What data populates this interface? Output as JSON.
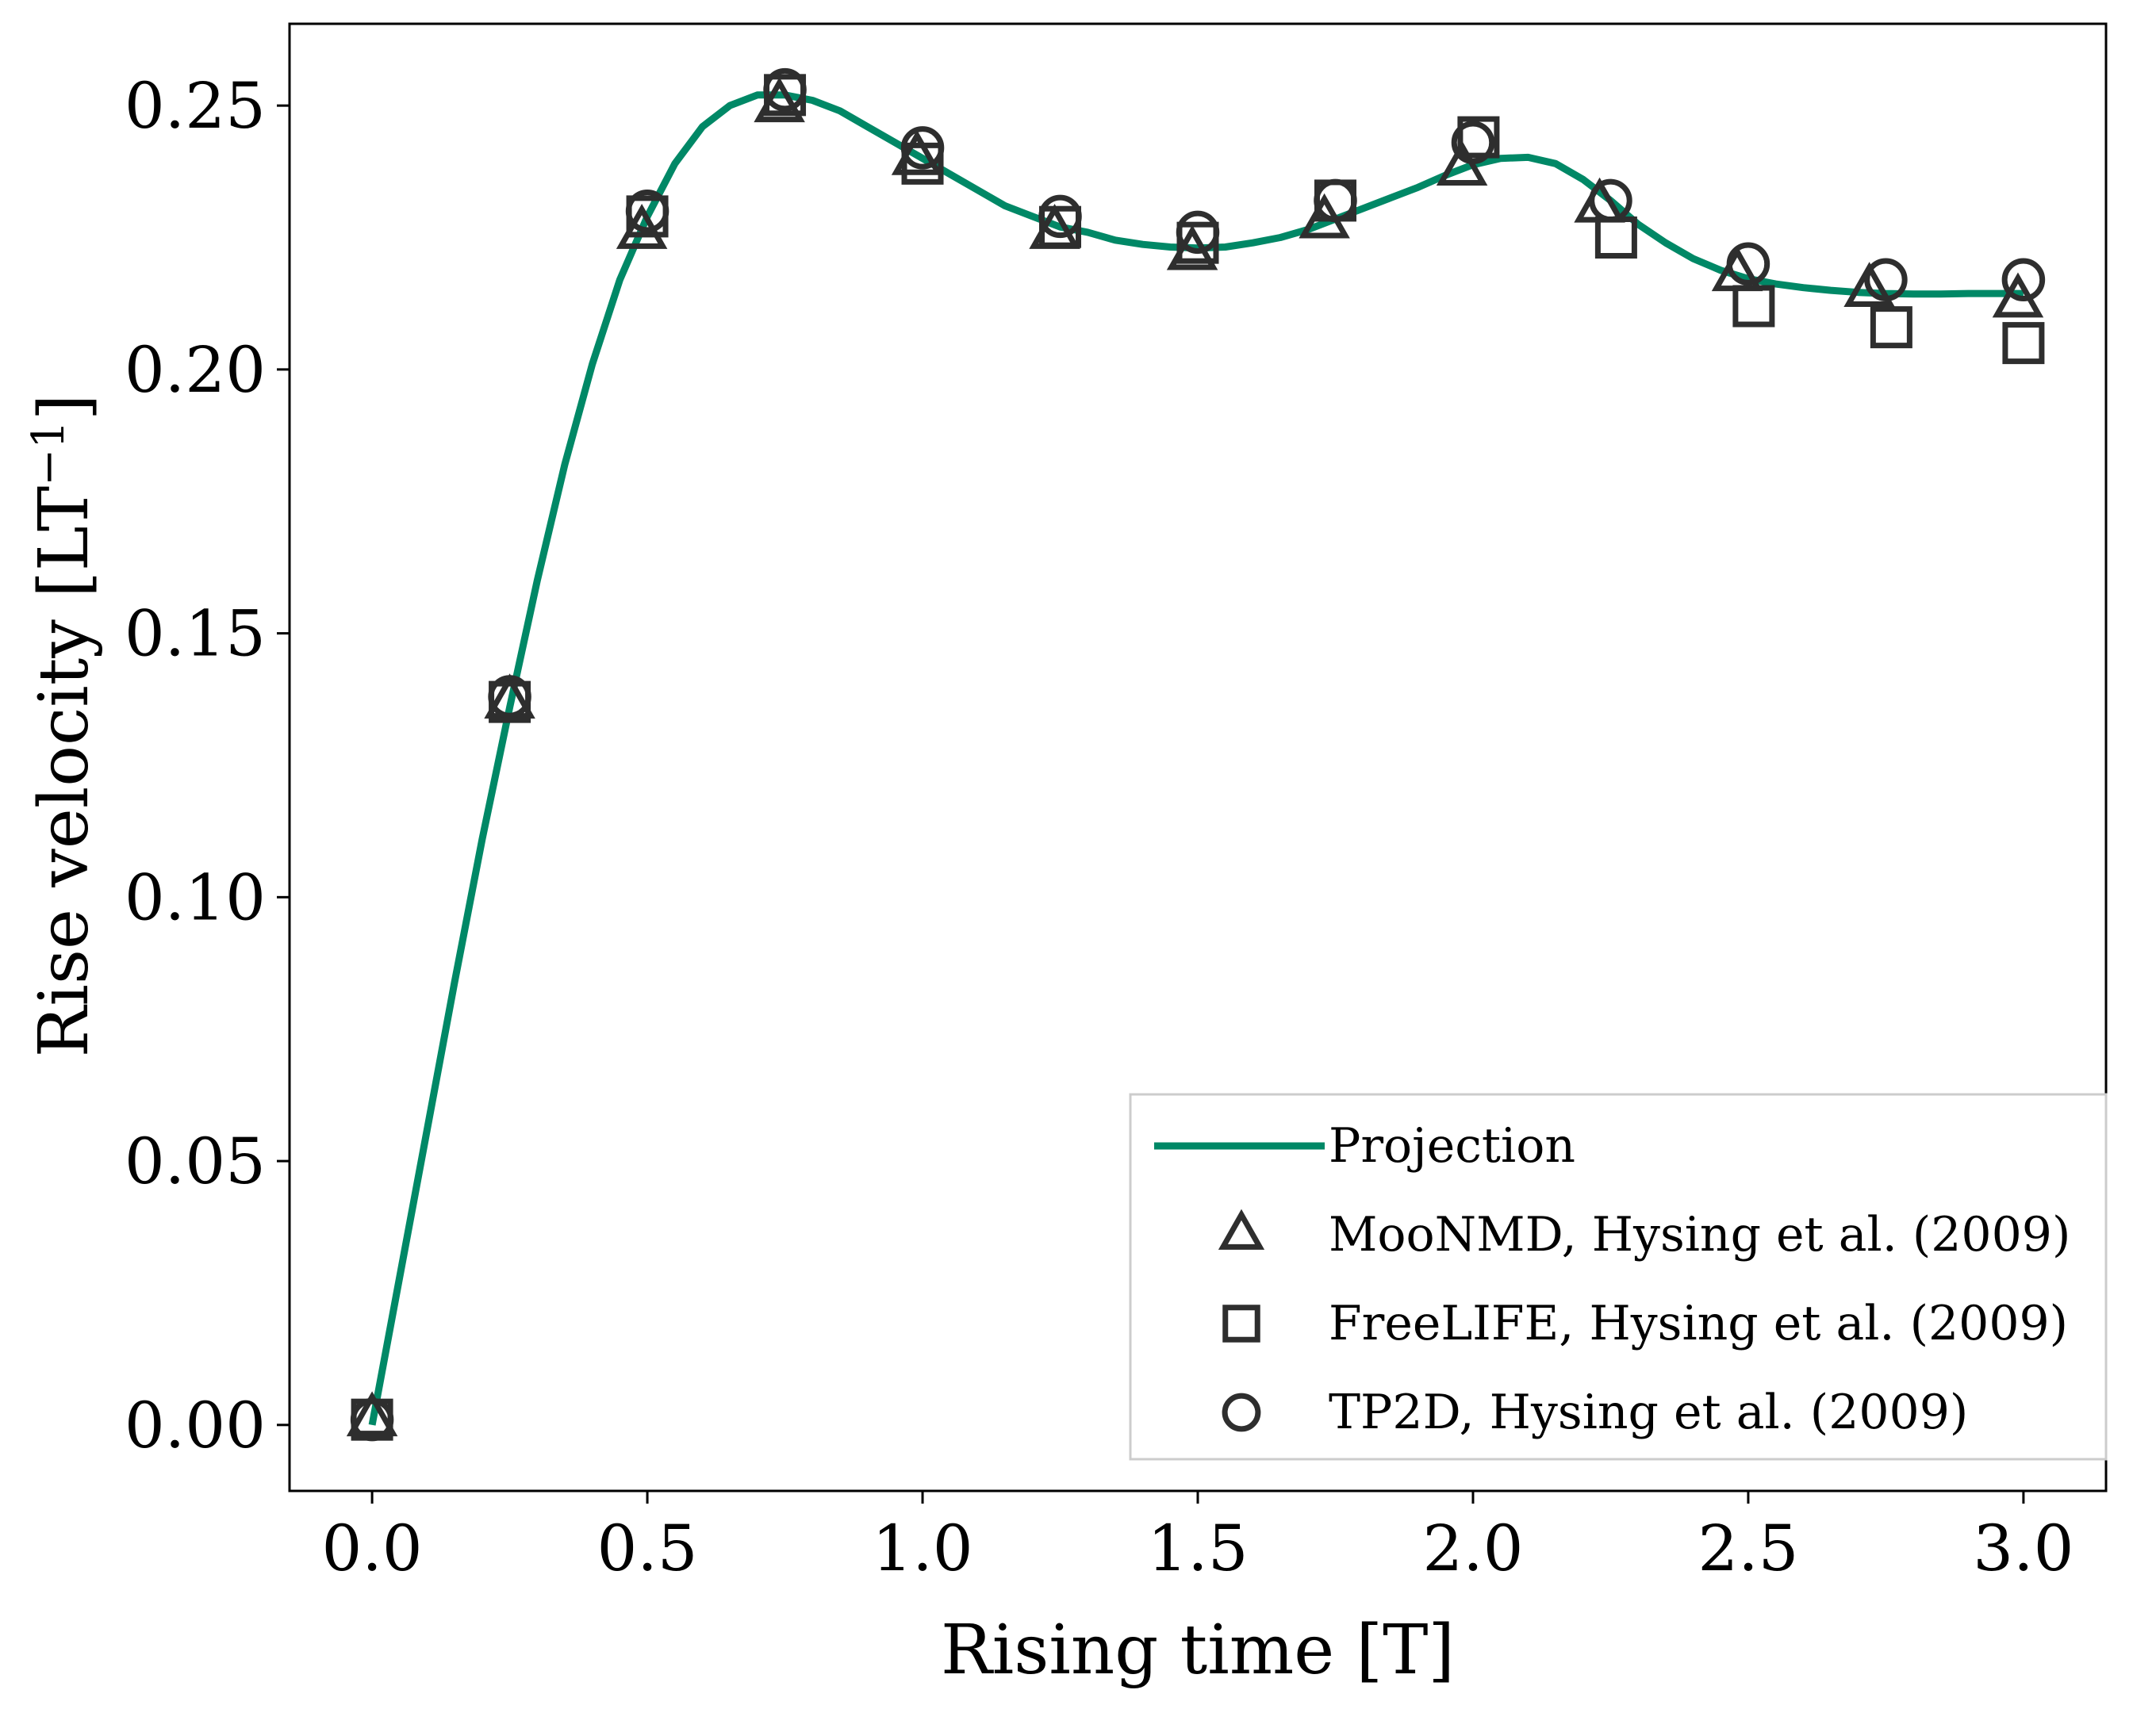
{
  "chart_data": {
    "type": "line",
    "xlabel": "Rising time [T]",
    "ylabel": "Rise velocity [LT",
    "ylabel_sup": "−1",
    "ylabel_close": "]",
    "xlim": [
      -0.15,
      3.15
    ],
    "ylim": [
      -0.0125,
      0.2655
    ],
    "x_ticks": [
      0.0,
      0.5,
      1.0,
      1.5,
      2.0,
      2.5,
      3.0
    ],
    "x_tick_labels": [
      "0.0",
      "0.5",
      "1.0",
      "1.5",
      "2.0",
      "2.5",
      "3.0"
    ],
    "y_ticks": [
      0.0,
      0.05,
      0.1,
      0.15,
      0.2,
      0.25
    ],
    "y_tick_labels": [
      "0.00",
      "0.05",
      "0.10",
      "0.15",
      "0.20",
      "0.25"
    ],
    "grid": false,
    "legend_position": "lower-right",
    "series": [
      {
        "name": "Projection",
        "kind": "line",
        "color": "#008866",
        "x": [
          0.0,
          0.05,
          0.1,
          0.15,
          0.2,
          0.25,
          0.3,
          0.35,
          0.4,
          0.45,
          0.5,
          0.55,
          0.6,
          0.65,
          0.7,
          0.75,
          0.8,
          0.85,
          0.9,
          0.95,
          1.0,
          1.05,
          1.1,
          1.15,
          1.2,
          1.25,
          1.3,
          1.35,
          1.4,
          1.45,
          1.5,
          1.55,
          1.6,
          1.65,
          1.7,
          1.75,
          1.8,
          1.85,
          1.9,
          1.95,
          2.0,
          2.05,
          2.1,
          2.15,
          2.2,
          2.25,
          2.3,
          2.35,
          2.4,
          2.45,
          2.5,
          2.55,
          2.6,
          2.65,
          2.7,
          2.75,
          2.8,
          2.85,
          2.9,
          2.95,
          3.0
        ],
        "y": [
          0.0,
          0.028,
          0.056,
          0.084,
          0.111,
          0.136,
          0.16,
          0.182,
          0.201,
          0.217,
          0.229,
          0.239,
          0.246,
          0.25,
          0.252,
          0.252,
          0.251,
          0.249,
          0.246,
          0.243,
          0.24,
          0.237,
          0.234,
          0.231,
          0.229,
          0.227,
          0.226,
          0.2245,
          0.2237,
          0.2232,
          0.223,
          0.2232,
          0.224,
          0.225,
          0.2265,
          0.2285,
          0.2305,
          0.2325,
          0.2345,
          0.2368,
          0.2388,
          0.24,
          0.2402,
          0.239,
          0.236,
          0.232,
          0.2275,
          0.224,
          0.221,
          0.2188,
          0.2172,
          0.2162,
          0.2155,
          0.215,
          0.2146,
          0.2144,
          0.2143,
          0.2143,
          0.2144,
          0.2144,
          0.2144
        ]
      },
      {
        "name": "MooNMD, Hysing et al. (2009)",
        "kind": "marker",
        "marker": "triangle",
        "x": [
          0.0,
          0.25,
          0.49,
          0.74,
          0.99,
          1.24,
          1.49,
          1.73,
          1.98,
          2.23,
          2.48,
          2.72,
          2.99
        ],
        "y": [
          0.001,
          0.137,
          0.226,
          0.25,
          0.24,
          0.226,
          0.222,
          0.228,
          0.238,
          0.231,
          0.218,
          0.215,
          0.213
        ]
      },
      {
        "name": "FreeLIFE, Hysing et al. (2009)",
        "kind": "marker",
        "marker": "square",
        "x": [
          0.0,
          0.25,
          0.5,
          0.75,
          1.0,
          1.25,
          1.5,
          1.75,
          2.01,
          2.26,
          2.51,
          2.76,
          3.0
        ],
        "y": [
          0.001,
          0.137,
          0.229,
          0.252,
          0.239,
          0.227,
          0.224,
          0.232,
          0.244,
          0.225,
          0.212,
          0.208,
          0.205
        ]
      },
      {
        "name": "TP2D, Hysing et al. (2009)",
        "kind": "marker",
        "marker": "circle",
        "x": [
          0.0,
          0.25,
          0.5,
          0.75,
          1.0,
          1.25,
          1.5,
          1.75,
          2.0,
          2.25,
          2.5,
          2.75,
          3.0
        ],
        "y": [
          0.001,
          0.138,
          0.23,
          0.253,
          0.242,
          0.229,
          0.226,
          0.232,
          0.243,
          0.232,
          0.22,
          0.217,
          0.217
        ]
      }
    ],
    "marker_color": "#2e2e2e"
  }
}
